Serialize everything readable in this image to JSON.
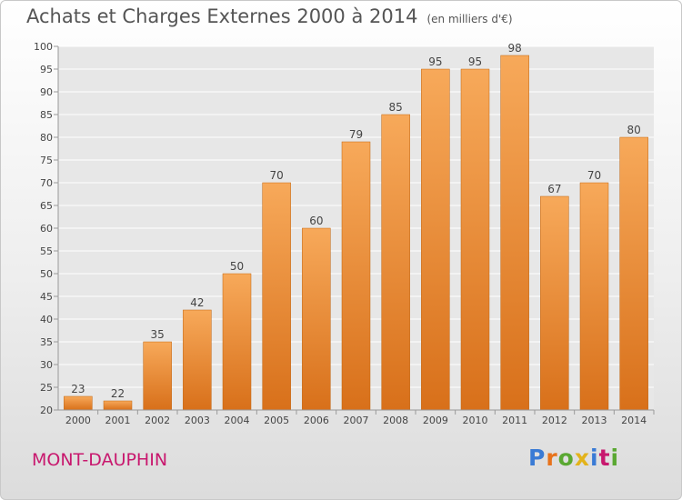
{
  "title": "Achats et Charges Externes 2000 à 2014",
  "subtitle": "(en milliers d'€)",
  "commune": "MONT-DAUPHIN",
  "logo": {
    "letters": [
      "P",
      "r",
      "o",
      "x",
      "i",
      "t",
      "i"
    ],
    "colors": [
      "#3a7bd5",
      "#e8731c",
      "#5aa832",
      "#e3b31b",
      "#3a7bd5",
      "#c8186e",
      "#5aa832"
    ]
  },
  "colors": {
    "bar_top": "#f7a95a",
    "bar_bottom": "#d8701a",
    "bar_edge": "#c0640f",
    "grid": "#ffffff",
    "text": "#444444"
  },
  "chart_data": {
    "type": "bar",
    "categories": [
      "2000",
      "2001",
      "2002",
      "2003",
      "2004",
      "2005",
      "2006",
      "2007",
      "2008",
      "2009",
      "2010",
      "2011",
      "2012",
      "2013",
      "2014"
    ],
    "values": [
      23,
      22,
      35,
      42,
      50,
      70,
      60,
      79,
      85,
      95,
      95,
      98,
      67,
      70,
      80
    ],
    "ylim": [
      20,
      100
    ],
    "yticks": [
      20,
      25,
      30,
      35,
      40,
      45,
      50,
      55,
      60,
      65,
      70,
      75,
      80,
      85,
      90,
      95,
      100
    ],
    "grid": true,
    "xlabel": "",
    "ylabel": ""
  }
}
